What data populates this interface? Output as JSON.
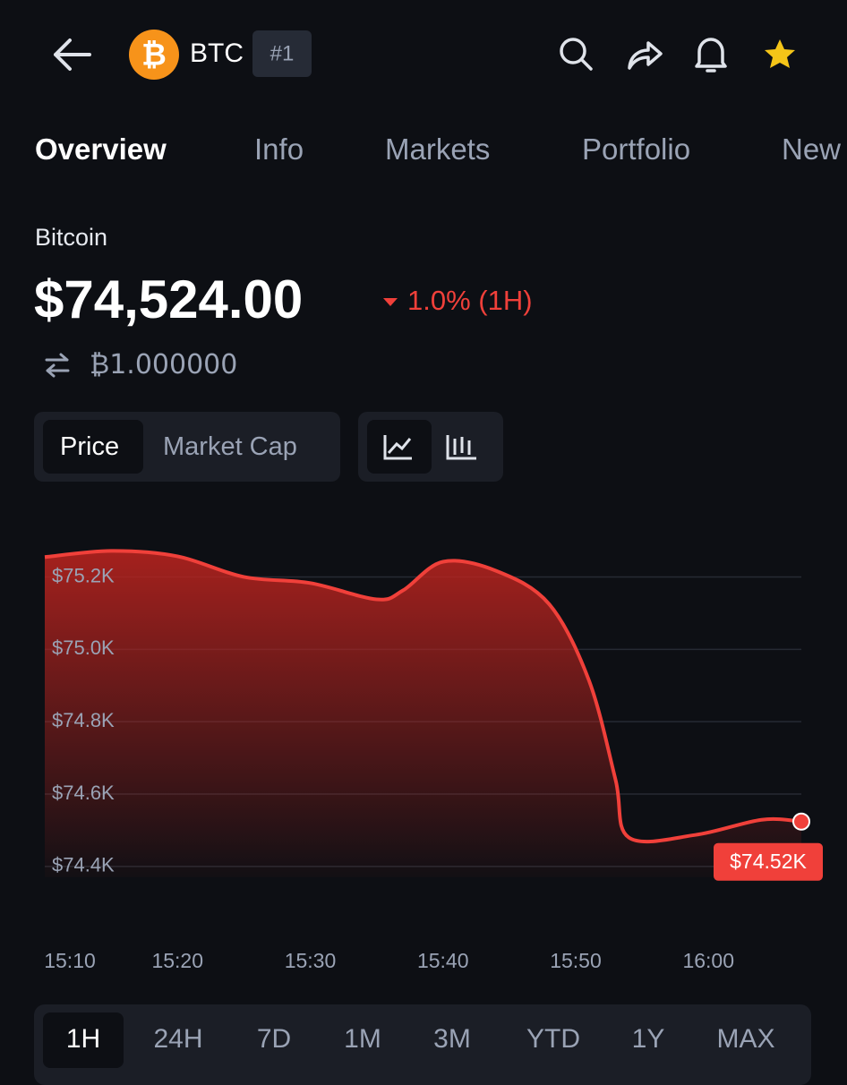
{
  "header": {
    "symbol": "BTC",
    "rank": "#1"
  },
  "tabs": [
    "Overview",
    "Info",
    "Markets",
    "Portfolio",
    "New"
  ],
  "coin": {
    "name": "Bitcoin",
    "price": "$74,524.00",
    "change": "1.0% (1H)",
    "btc_value": "₿1.000000"
  },
  "toggle": [
    "Price",
    "Market Cap"
  ],
  "ranges": [
    "1H",
    "24H",
    "7D",
    "1M",
    "3M",
    "YTD",
    "1Y",
    "MAX"
  ],
  "chart_data": {
    "type": "area",
    "color": "#f0403a",
    "x": [
      910,
      915,
      920,
      925,
      930,
      935,
      937,
      940,
      944,
      948,
      951,
      953,
      954,
      959,
      964,
      967
    ],
    "values": [
      75255,
      75272,
      75257,
      75200,
      75183,
      75138,
      75163,
      75242,
      75217,
      75125,
      74914,
      74640,
      74480,
      74487,
      74529,
      74524
    ],
    "value_labels": [
      null,
      null,
      null,
      null,
      null,
      null,
      null,
      null,
      null,
      null,
      null,
      null,
      null,
      null,
      null,
      "$74.52K"
    ],
    "xlim": [
      910,
      967
    ],
    "xticks": [
      {
        "value": 910,
        "label": "15:10"
      },
      {
        "value": 920,
        "label": "15:20"
      },
      {
        "value": 930,
        "label": "15:30"
      },
      {
        "value": 940,
        "label": "15:40"
      },
      {
        "value": 950,
        "label": "15:50"
      },
      {
        "value": 960,
        "label": "16:00"
      }
    ],
    "ylim": [
      74370,
      75310
    ],
    "yticks": [
      {
        "value": 75200,
        "label": "$75.2K"
      },
      {
        "value": 75000,
        "label": "$75.0K"
      },
      {
        "value": 74800,
        "label": "$74.8K"
      },
      {
        "value": 74600,
        "label": "$74.6K"
      },
      {
        "value": 74400,
        "label": "$74.4K"
      }
    ],
    "grid": true
  }
}
